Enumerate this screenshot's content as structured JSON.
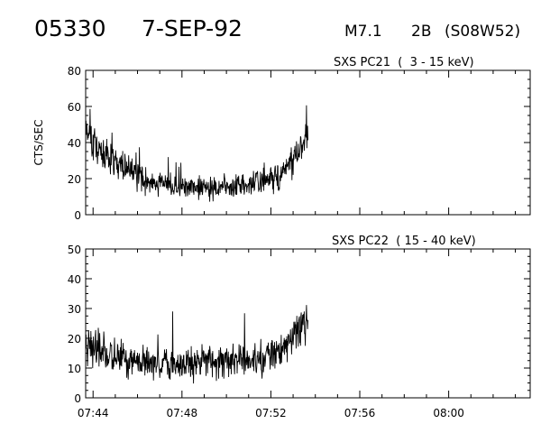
{
  "header": {
    "event_id": "05330",
    "date": "7-SEP-92",
    "flare_class": "M7.1",
    "optical_class": "2B",
    "location": "(S08W52)"
  },
  "chart_data": [
    {
      "type": "line",
      "panel_label": "SXS PC21  (  3 - 15 keV)",
      "ylabel": "CTS/SEC",
      "ylim": [
        0,
        80
      ],
      "yticks": [
        0,
        20,
        40,
        60,
        80
      ],
      "xlim": [
        "07:43:40",
        "08:03:40"
      ],
      "xticks": [
        "07:44",
        "07:48",
        "07:52",
        "07:56",
        "08:00"
      ],
      "grid": false,
      "series": [
        {
          "points": [
            [
              "07:43:40",
              48
            ],
            [
              "07:44:00",
              40
            ],
            [
              "07:44:20",
              36
            ],
            [
              "07:44:40",
              33
            ],
            [
              "07:45:00",
              30
            ],
            [
              "07:45:20",
              27
            ],
            [
              "07:45:40",
              24
            ],
            [
              "07:46:00",
              22
            ],
            [
              "07:46:20",
              20
            ],
            [
              "07:46:40",
              19
            ],
            [
              "07:47:00",
              18
            ],
            [
              "07:47:20",
              17
            ],
            [
              "07:47:40",
              16
            ],
            [
              "07:48:00",
              15
            ],
            [
              "07:48:20",
              15
            ],
            [
              "07:48:40",
              15
            ],
            [
              "07:49:00",
              15
            ],
            [
              "07:49:20",
              15
            ],
            [
              "07:49:40",
              15
            ],
            [
              "07:50:00",
              15
            ],
            [
              "07:50:20",
              16
            ],
            [
              "07:50:40",
              17
            ],
            [
              "07:51:00",
              17
            ],
            [
              "07:51:20",
              18
            ],
            [
              "07:51:40",
              19
            ],
            [
              "07:52:00",
              20
            ],
            [
              "07:52:20",
              22
            ],
            [
              "07:52:40",
              25
            ],
            [
              "07:53:00",
              31
            ],
            [
              "07:53:20",
              38
            ],
            [
              "07:53:40",
              46
            ]
          ]
        }
      ]
    },
    {
      "type": "line",
      "panel_label": "SXS PC22  ( 15 - 40 keV)",
      "ylabel": "",
      "ylim": [
        0,
        50
      ],
      "yticks": [
        0,
        10,
        20,
        30,
        40,
        50
      ],
      "xlim": [
        "07:43:40",
        "08:03:40"
      ],
      "xticks": [
        "07:44",
        "07:48",
        "07:52",
        "07:56",
        "08:00"
      ],
      "grid": false,
      "series": [
        {
          "points": [
            [
              "07:43:40",
              18
            ],
            [
              "07:44:00",
              17
            ],
            [
              "07:44:20",
              16
            ],
            [
              "07:44:40",
              15
            ],
            [
              "07:45:00",
              14
            ],
            [
              "07:45:20",
              14
            ],
            [
              "07:45:40",
              13
            ],
            [
              "07:46:00",
              13
            ],
            [
              "07:46:20",
              12
            ],
            [
              "07:46:40",
              12
            ],
            [
              "07:47:00",
              12
            ],
            [
              "07:47:20",
              12
            ],
            [
              "07:47:40",
              11
            ],
            [
              "07:48:00",
              11
            ],
            [
              "07:48:20",
              12
            ],
            [
              "07:48:40",
              12
            ],
            [
              "07:49:00",
              12
            ],
            [
              "07:49:20",
              12
            ],
            [
              "07:49:40",
              12
            ],
            [
              "07:50:00",
              12
            ],
            [
              "07:50:20",
              13
            ],
            [
              "07:50:40",
              13
            ],
            [
              "07:51:00",
              13
            ],
            [
              "07:51:20",
              13
            ],
            [
              "07:51:40",
              13
            ],
            [
              "07:52:00",
              14
            ],
            [
              "07:52:20",
              15
            ],
            [
              "07:52:40",
              17
            ],
            [
              "07:53:00",
              20
            ],
            [
              "07:53:20",
              24
            ],
            [
              "07:53:40",
              26
            ]
          ]
        }
      ]
    }
  ]
}
